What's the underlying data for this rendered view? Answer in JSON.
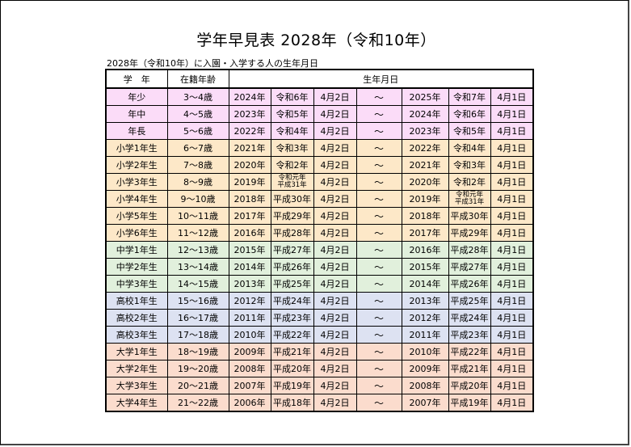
{
  "title": "学年早見表 2028年（令和10年）",
  "subtitle": "2028年（令和10年）に入園・入学する人の生年月日",
  "headers": {
    "grade": "学　年",
    "age": "在籍年齢",
    "birth": "生年月日"
  },
  "tilde": "～",
  "colors": {
    "preschool": "#fbdcf8",
    "elementary": "#fde8c8",
    "junior_high": "#e1f0dc",
    "high_school": "#dde2f2",
    "university": "#fbdccd"
  },
  "rows": [
    {
      "grade": "年少",
      "age": "3～4歳",
      "fy": "2024年",
      "fe": "令和6年",
      "fd": "4月2日",
      "ty": "2025年",
      "te": "令和7年",
      "td": "4月1日"
    },
    {
      "grade": "年中",
      "age": "4～5歳",
      "fy": "2023年",
      "fe": "令和5年",
      "fd": "4月2日",
      "ty": "2024年",
      "te": "令和6年",
      "td": "4月1日"
    },
    {
      "grade": "年長",
      "age": "5～6歳",
      "fy": "2022年",
      "fe": "令和4年",
      "fd": "4月2日",
      "ty": "2023年",
      "te": "令和5年",
      "td": "4月1日"
    },
    {
      "grade": "小学1年生",
      "age": "6～7歳",
      "fy": "2021年",
      "fe": "令和3年",
      "fd": "4月2日",
      "ty": "2022年",
      "te": "令和4年",
      "td": "4月1日"
    },
    {
      "grade": "小学2年生",
      "age": "7～8歳",
      "fy": "2020年",
      "fe": "令和2年",
      "fd": "4月2日",
      "ty": "2021年",
      "te": "令和3年",
      "td": "4月1日"
    },
    {
      "grade": "小学3年生",
      "age": "8～9歳",
      "fy": "2019年",
      "fe": "令和元年",
      "fe2": "平成31年",
      "fd": "4月2日",
      "ty": "2020年",
      "te": "令和2年",
      "td": "4月1日"
    },
    {
      "grade": "小学4年生",
      "age": "9～10歳",
      "fy": "2018年",
      "fe": "平成30年",
      "fd": "4月2日",
      "ty": "2019年",
      "te": "令和元年",
      "te2": "平成31年",
      "td": "4月1日"
    },
    {
      "grade": "小学5年生",
      "age": "10～11歳",
      "fy": "2017年",
      "fe": "平成29年",
      "fd": "4月2日",
      "ty": "2018年",
      "te": "平成30年",
      "td": "4月1日"
    },
    {
      "grade": "小学6年生",
      "age": "11～12歳",
      "fy": "2016年",
      "fe": "平成28年",
      "fd": "4月2日",
      "ty": "2017年",
      "te": "平成29年",
      "td": "4月1日"
    },
    {
      "grade": "中学1年生",
      "age": "12～13歳",
      "fy": "2015年",
      "fe": "平成27年",
      "fd": "4月2日",
      "ty": "2016年",
      "te": "平成28年",
      "td": "4月1日"
    },
    {
      "grade": "中学2年生",
      "age": "13～14歳",
      "fy": "2014年",
      "fe": "平成26年",
      "fd": "4月2日",
      "ty": "2015年",
      "te": "平成27年",
      "td": "4月1日"
    },
    {
      "grade": "中学3年生",
      "age": "14～15歳",
      "fy": "2013年",
      "fe": "平成25年",
      "fd": "4月2日",
      "ty": "2014年",
      "te": "平成26年",
      "td": "4月1日"
    },
    {
      "grade": "高校1年生",
      "age": "15～16歳",
      "fy": "2012年",
      "fe": "平成24年",
      "fd": "4月2日",
      "ty": "2013年",
      "te": "平成25年",
      "td": "4月1日"
    },
    {
      "grade": "高校2年生",
      "age": "16～17歳",
      "fy": "2011年",
      "fe": "平成23年",
      "fd": "4月2日",
      "ty": "2012年",
      "te": "平成24年",
      "td": "4月1日"
    },
    {
      "grade": "高校3年生",
      "age": "17～18歳",
      "fy": "2010年",
      "fe": "平成22年",
      "fd": "4月2日",
      "ty": "2011年",
      "te": "平成23年",
      "td": "4月1日"
    },
    {
      "grade": "大学1年生",
      "age": "18～19歳",
      "fy": "2009年",
      "fe": "平成21年",
      "fd": "4月2日",
      "ty": "2010年",
      "te": "平成22年",
      "td": "4月1日"
    },
    {
      "grade": "大学2年生",
      "age": "19～20歳",
      "fy": "2008年",
      "fe": "平成20年",
      "fd": "4月2日",
      "ty": "2009年",
      "te": "平成21年",
      "td": "4月1日"
    },
    {
      "grade": "大学3年生",
      "age": "20～21歳",
      "fy": "2007年",
      "fe": "平成19年",
      "fd": "4月2日",
      "ty": "2008年",
      "te": "平成20年",
      "td": "4月1日"
    },
    {
      "grade": "大学4年生",
      "age": "21～22歳",
      "fy": "2006年",
      "fe": "平成18年",
      "fd": "4月2日",
      "ty": "2007年",
      "te": "平成19年",
      "td": "4月1日"
    }
  ]
}
